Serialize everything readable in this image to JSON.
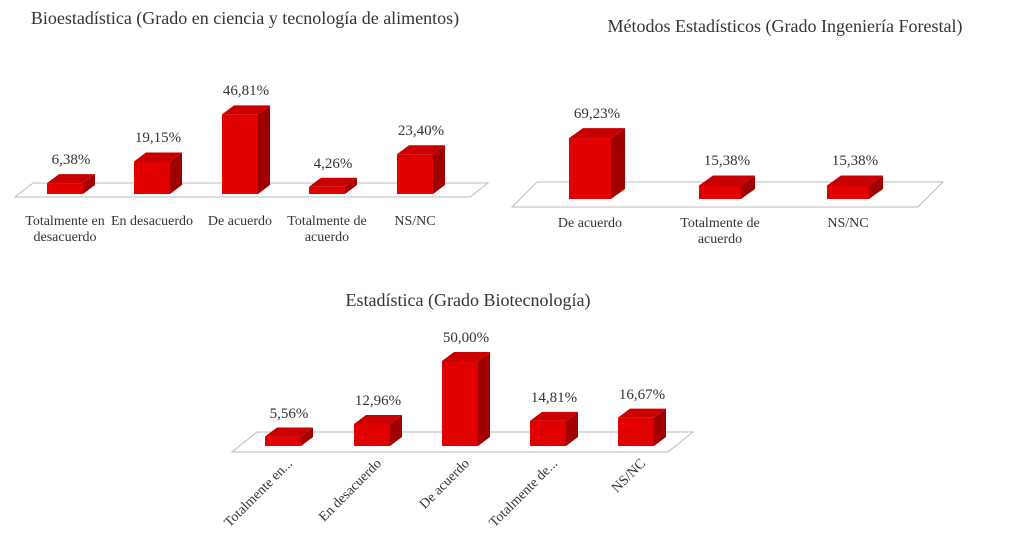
{
  "chart_data": [
    {
      "type": "bar3d",
      "title": "Bioestadística (Grado en ciencia y tecnología de alimentos)",
      "categories": [
        "Totalmente en desacuerdo",
        "En desacuerdo",
        "De acuerdo",
        "Totalmente de acuerdo",
        "NS/NC"
      ],
      "values": [
        6.38,
        19.15,
        46.81,
        4.26,
        23.4
      ],
      "value_labels": [
        "6,38%",
        "19,15%",
        "46,81%",
        "4,26%",
        "23,40%"
      ],
      "color": "#e00000"
    },
    {
      "type": "bar3d",
      "title": "Métodos Estadísticos (Grado Ingeniería Forestal)",
      "categories": [
        "De acuerdo",
        "Totalmente de acuerdo",
        "NS/NC"
      ],
      "values": [
        69.23,
        15.38,
        15.38
      ],
      "value_labels": [
        "69,23%",
        "15,38%",
        "15,38%"
      ],
      "color": "#e00000"
    },
    {
      "type": "bar3d",
      "title": "Estadística (Grado Biotecnología)",
      "categories": [
        "Totalmente en...",
        "En desacuerdo",
        "De acuerdo",
        "Totalmente de...",
        "NS/NC"
      ],
      "values": [
        5.56,
        12.96,
        50.0,
        14.81,
        16.67
      ],
      "value_labels": [
        "5,56%",
        "12,96%",
        "50,00%",
        "14,81%",
        "16,67%"
      ],
      "color": "#e00000"
    }
  ]
}
